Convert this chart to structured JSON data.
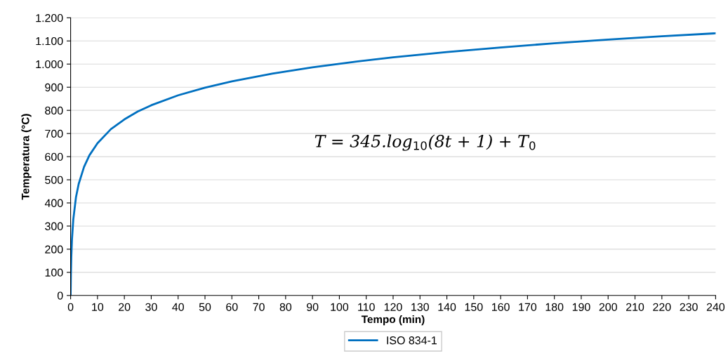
{
  "chart_data": {
    "type": "line",
    "xlabel": "Tempo (min)",
    "ylabel": "Temperatura (°C)",
    "annotations": [
      "T = 345.log$_{10}$(8t + 1) + T$_{0}$"
    ],
    "series": [
      {
        "name": "ISO 834-1",
        "color": "#0070c0",
        "x": [
          0,
          0.1,
          0.25,
          0.5,
          1,
          2,
          3,
          5,
          7,
          10,
          15,
          20,
          25,
          30,
          40,
          50,
          60,
          75,
          90,
          105,
          120,
          140,
          160,
          180,
          200,
          220,
          240
        ],
        "values": [
          0,
          88,
          165,
          241,
          329,
          425,
          482,
          556,
          606,
          658,
          719,
          761,
          795,
          822,
          865,
          898,
          925,
          959,
          986,
          1009,
          1029,
          1052,
          1072,
          1090,
          1106,
          1120,
          1133
        ]
      }
    ],
    "xlim": [
      0,
      240
    ],
    "xticks": [
      0,
      10,
      20,
      30,
      40,
      50,
      60,
      70,
      80,
      90,
      100,
      110,
      120,
      130,
      140,
      150,
      160,
      170,
      180,
      190,
      200,
      210,
      220,
      230,
      240
    ],
    "ylim": [
      0,
      1200
    ],
    "yticks": [
      0,
      100,
      200,
      300,
      400,
      500,
      600,
      700,
      800,
      900,
      {
        "value": 1000,
        "label": "1.000"
      },
      {
        "value": 1100,
        "label": "1.100"
      },
      {
        "value": 1200,
        "label": "1.200"
      }
    ],
    "grid": "y",
    "legend": "bottom",
    "marker": "none",
    "line_style": "solid"
  }
}
